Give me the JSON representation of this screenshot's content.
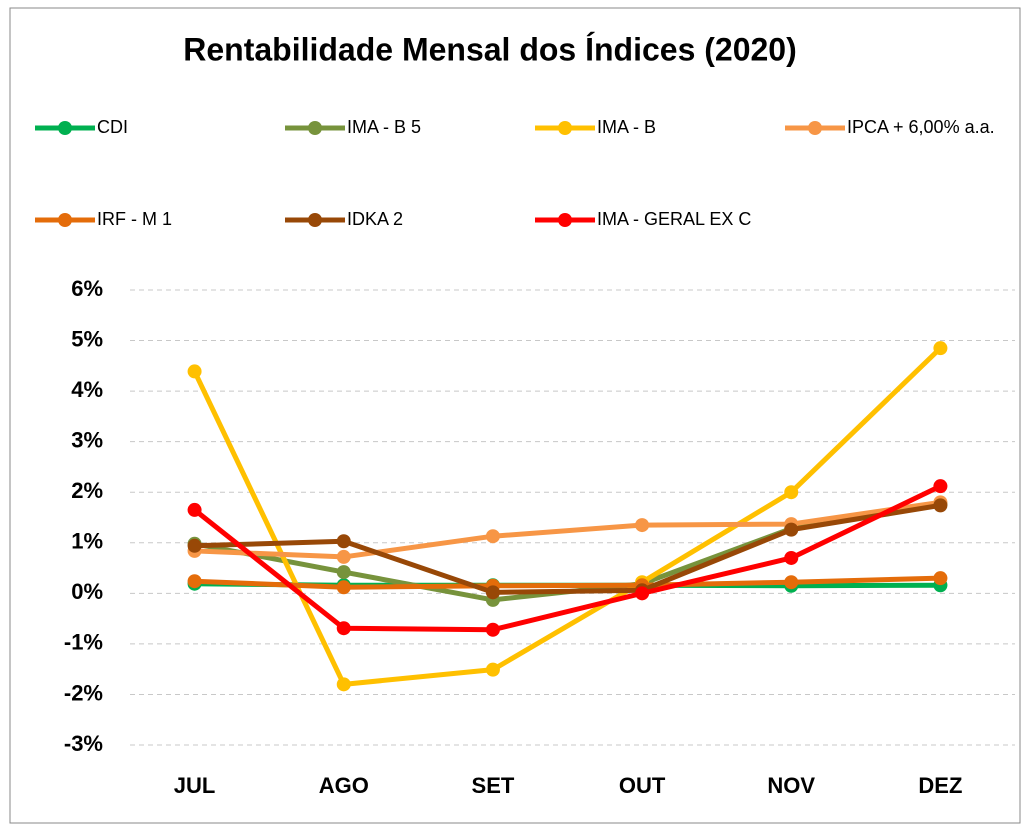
{
  "chart_data": {
    "type": "line",
    "title": "Rentabilidade Mensal dos Índices (2020)",
    "categories": [
      "JUL",
      "AGO",
      "SET",
      "OUT",
      "NOV",
      "DEZ"
    ],
    "series": [
      {
        "name": "CDI",
        "color": "#00b050",
        "values": [
          0.19,
          0.16,
          0.16,
          0.16,
          0.15,
          0.16
        ]
      },
      {
        "name": "IMA - B 5",
        "color": "#77933c",
        "values": [
          0.98,
          0.42,
          -0.13,
          0.19,
          1.28,
          1.77
        ]
      },
      {
        "name": "IMA - B",
        "color": "#ffc000",
        "values": [
          4.39,
          -1.8,
          -1.51,
          0.22,
          2.0,
          4.85
        ]
      },
      {
        "name": "IPCA + 6,00% a.a.",
        "color": "#f79646",
        "values": [
          0.84,
          0.72,
          1.13,
          1.35,
          1.37,
          1.8
        ]
      },
      {
        "name": "IRF - M 1",
        "color": "#e46c0a",
        "values": [
          0.24,
          0.12,
          0.15,
          0.16,
          0.22,
          0.3
        ]
      },
      {
        "name": "IDKA 2",
        "color": "#984807",
        "values": [
          0.94,
          1.03,
          0.02,
          0.06,
          1.26,
          1.74
        ]
      },
      {
        "name": "IMA - GERAL EX C",
        "color": "#ff0000",
        "values": [
          1.65,
          -0.69,
          -0.72,
          0.0,
          0.7,
          2.12
        ]
      }
    ],
    "ylim": [
      -3,
      6
    ],
    "yticks": [
      {
        "value": -3,
        "label": "-3%"
      },
      {
        "value": -2,
        "label": "-2%"
      },
      {
        "value": -1,
        "label": "-1%"
      },
      {
        "value": 0,
        "label": "0%"
      },
      {
        "value": 1,
        "label": "1%"
      },
      {
        "value": 2,
        "label": "2%"
      },
      {
        "value": 3,
        "label": "3%"
      },
      {
        "value": 4,
        "label": "4%"
      },
      {
        "value": 5,
        "label": "5%"
      },
      {
        "value": 6,
        "label": "6%"
      }
    ],
    "grid": true,
    "legend": "top"
  }
}
